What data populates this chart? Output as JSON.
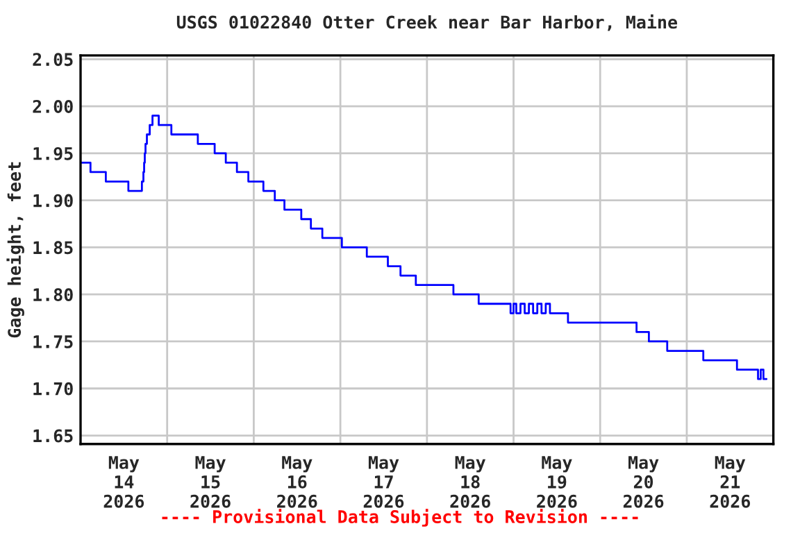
{
  "chart_data": {
    "type": "step",
    "title": "USGS 01022840 Otter Creek near Bar Harbor, Maine",
    "ylabel": "Gage height, feet",
    "annotations": [
      "---- Provisional Data Subject to Revision ----"
    ],
    "x": [
      "2026-05-14T00:00",
      "2026-05-14T02:45",
      "2026-05-14T07:00",
      "2026-05-14T13:15",
      "2026-05-14T17:00",
      "2026-05-14T17:25",
      "2026-05-14T17:37",
      "2026-05-14T17:48",
      "2026-05-14T18:00",
      "2026-05-14T18:23",
      "2026-05-14T19:10",
      "2026-05-14T19:56",
      "2026-05-14T21:40",
      "2026-05-15T01:10",
      "2026-05-15T08:30",
      "2026-05-15T13:10",
      "2026-05-15T16:15",
      "2026-05-15T19:20",
      "2026-05-15T22:30",
      "2026-05-16T02:40",
      "2026-05-16T05:50",
      "2026-05-16T08:30",
      "2026-05-16T13:10",
      "2026-05-16T15:50",
      "2026-05-16T19:00",
      "2026-05-17T00:25",
      "2026-05-17T07:20",
      "2026-05-17T13:10",
      "2026-05-17T16:40",
      "2026-05-17T20:55",
      "2026-05-18T07:20",
      "2026-05-18T14:20",
      "2026-05-18T23:10",
      "2026-05-19T00:00",
      "2026-05-19T00:45",
      "2026-05-19T01:55",
      "2026-05-19T03:05",
      "2026-05-19T04:15",
      "2026-05-19T05:25",
      "2026-05-19T06:35",
      "2026-05-19T07:45",
      "2026-05-19T08:55",
      "2026-05-19T10:05",
      "2026-05-19T15:05",
      "2026-05-20T10:05",
      "2026-05-20T13:30",
      "2026-05-20T18:35",
      "2026-05-21T04:35",
      "2026-05-21T13:55",
      "2026-05-21T19:45",
      "2026-05-21T20:30",
      "2026-05-21T21:15",
      "2026-05-21T22:05"
    ],
    "series": [
      {
        "color": "#0000ff",
        "values": [
          1.94,
          1.93,
          1.92,
          1.91,
          1.92,
          1.93,
          1.94,
          1.95,
          1.96,
          1.97,
          1.98,
          1.99,
          1.98,
          1.97,
          1.96,
          1.95,
          1.94,
          1.93,
          1.92,
          1.91,
          1.9,
          1.89,
          1.88,
          1.87,
          1.86,
          1.85,
          1.84,
          1.83,
          1.82,
          1.81,
          1.8,
          1.79,
          1.78,
          1.79,
          1.78,
          1.79,
          1.78,
          1.79,
          1.78,
          1.79,
          1.78,
          1.79,
          1.78,
          1.77,
          1.76,
          1.75,
          1.74,
          1.73,
          1.72,
          1.71,
          1.72,
          1.71,
          1.71
        ]
      }
    ],
    "xlim": [
      "2026-05-14T00:00",
      "2026-05-22T00:00"
    ],
    "xticks": [
      {
        "value": "2026-05-14T12:00",
        "label": "May\n14\n2026"
      },
      {
        "value": "2026-05-15T12:00",
        "label": "May\n15\n2026"
      },
      {
        "value": "2026-05-16T12:00",
        "label": "May\n16\n2026"
      },
      {
        "value": "2026-05-17T12:00",
        "label": "May\n17\n2026"
      },
      {
        "value": "2026-05-18T12:00",
        "label": "May\n18\n2026"
      },
      {
        "value": "2026-05-19T12:00",
        "label": "May\n19\n2026"
      },
      {
        "value": "2026-05-20T12:00",
        "label": "May\n20\n2026"
      },
      {
        "value": "2026-05-21T12:00",
        "label": "May\n21\n2026"
      },
      {
        "value": "2026-05-15T00:00",
        "label": null
      },
      {
        "value": "2026-05-16T00:00",
        "label": null
      },
      {
        "value": "2026-05-17T00:00",
        "label": null
      },
      {
        "value": "2026-05-18T00:00",
        "label": null
      },
      {
        "value": "2026-05-19T00:00",
        "label": null
      },
      {
        "value": "2026-05-20T00:00",
        "label": null
      },
      {
        "value": "2026-05-21T00:00",
        "label": null
      }
    ],
    "ylim": [
      1.641,
      2.054
    ],
    "yticks": [
      {
        "value": 1.65,
        "label": "1.65"
      },
      {
        "value": 1.7,
        "label": "1.70"
      },
      {
        "value": 1.75,
        "label": "1.75"
      },
      {
        "value": 1.8,
        "label": "1.80"
      },
      {
        "value": 1.85,
        "label": "1.85"
      },
      {
        "value": 1.9,
        "label": "1.90"
      },
      {
        "value": 1.95,
        "label": "1.95"
      },
      {
        "value": 2.0,
        "label": "2.00"
      },
      {
        "value": 2.05,
        "label": "2.05"
      }
    ],
    "grid": true,
    "legend": false
  }
}
